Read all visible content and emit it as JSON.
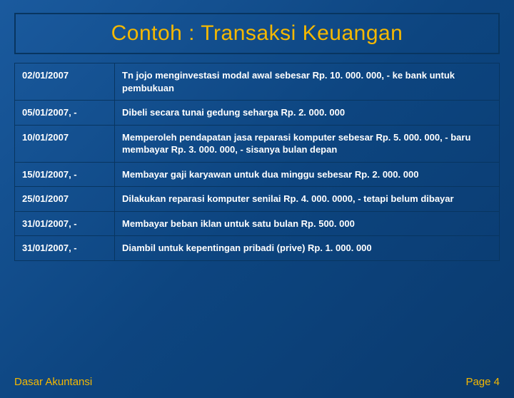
{
  "title": "Contoh : Transaksi Keuangan",
  "rows": [
    {
      "date": "02/01/2007",
      "desc": "Tn  jojo menginvestasi modal awal sebesar Rp. 10. 000. 000, - ke bank untuk  pembukuan"
    },
    {
      "date": "05/01/2007, -",
      "desc": "Dibeli secara tunai gedung seharga Rp. 2. 000. 000"
    },
    {
      "date": "10/01/2007",
      "desc": "Memperoleh pendapatan jasa reparasi komputer sebesar Rp. 5. 000. 000, -     baru membayar Rp. 3. 000. 000, -  sisanya bulan depan"
    },
    {
      "date": "15/01/2007, -",
      "desc": "Membayar gaji karyawan untuk dua minggu sebesar Rp. 2. 000. 000"
    },
    {
      "date": "25/01/2007",
      "desc": "Dilakukan reparasi komputer senilai Rp. 4. 000. 0000, - tetapi belum dibayar"
    },
    {
      "date": "31/01/2007, -",
      "desc": "Membayar beban iklan untuk satu bulan Rp. 500. 000"
    },
    {
      "date": "31/01/2007, -",
      "desc": "Diambil untuk kepentingan pribadi (prive) Rp. 1. 000. 000"
    }
  ],
  "footer_left": "Dasar Akuntansi",
  "footer_right": "Page 4",
  "colors": {
    "title": "#f5b800",
    "border": "#083560",
    "text": "#ffffff",
    "footer": "#f5b800"
  }
}
